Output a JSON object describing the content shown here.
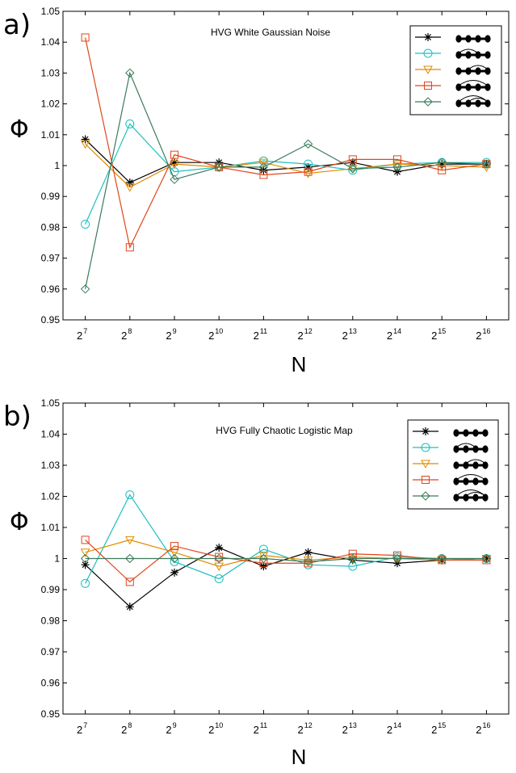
{
  "chart_data": [
    {
      "type": "line",
      "panel_label": "a)",
      "title": "HVG White Gaussian Noise",
      "xlabel": "N",
      "ylabel": "Φ",
      "ylim": [
        0.95,
        1.05
      ],
      "yticks": [
        "0.95",
        "0.96",
        "0.97",
        "0.98",
        "0.99",
        "1",
        "1.01",
        "1.02",
        "1.03",
        "1.04",
        "1.05"
      ],
      "categories": [
        {
          "base": "2",
          "exp": "7"
        },
        {
          "base": "2",
          "exp": "8"
        },
        {
          "base": "2",
          "exp": "9"
        },
        {
          "base": "2",
          "exp": "10"
        },
        {
          "base": "2",
          "exp": "11"
        },
        {
          "base": "2",
          "exp": "12"
        },
        {
          "base": "2",
          "exp": "13"
        },
        {
          "base": "2",
          "exp": "14"
        },
        {
          "base": "2",
          "exp": "15"
        },
        {
          "base": "2",
          "exp": "16"
        }
      ],
      "legend_position": "top-right",
      "series": [
        {
          "marker": "star",
          "color": "#000000",
          "motif": "chain",
          "values": [
            1.0085,
            0.9945,
            1.001,
            1.001,
            0.9985,
            0.9995,
            1.001,
            0.998,
            1.0005,
            1.0005
          ]
        },
        {
          "marker": "circle",
          "color": "#1fbfbf",
          "motif": "arc-1-3",
          "values": [
            0.981,
            1.0135,
            0.998,
            0.9995,
            1.0015,
            1.0005,
            0.9985,
            1.0005,
            1.001,
            1.001
          ]
        },
        {
          "marker": "triangle-down",
          "color": "#e08a00",
          "motif": "arc-2-4",
          "values": [
            1.007,
            0.993,
            1.0005,
            0.9995,
            1.001,
            0.9975,
            0.999,
            1.0005,
            1.0,
            0.9995
          ]
        },
        {
          "marker": "square",
          "color": "#e0451a",
          "motif": "arc-1-4",
          "values": [
            1.0415,
            0.9735,
            1.0035,
            0.9995,
            0.997,
            0.998,
            1.002,
            1.002,
            0.9985,
            1.0005
          ]
        },
        {
          "marker": "diamond",
          "color": "#3a7a5a",
          "motif": "arcs-nested",
          "values": [
            0.96,
            1.03,
            0.9955,
            0.9995,
            0.9995,
            1.007,
            0.999,
            0.9995,
            1.001,
            1.0005
          ]
        }
      ]
    },
    {
      "type": "line",
      "panel_label": "b)",
      "title": "HVG Fully Chaotic Logistic Map",
      "xlabel": "N",
      "ylabel": "Φ",
      "ylim": [
        0.95,
        1.05
      ],
      "yticks": [
        "0.95",
        "0.96",
        "0.97",
        "0.98",
        "0.99",
        "1",
        "1.01",
        "1.02",
        "1.03",
        "1.04",
        "1.05"
      ],
      "categories": [
        {
          "base": "2",
          "exp": "7"
        },
        {
          "base": "2",
          "exp": "8"
        },
        {
          "base": "2",
          "exp": "9"
        },
        {
          "base": "2",
          "exp": "10"
        },
        {
          "base": "2",
          "exp": "11"
        },
        {
          "base": "2",
          "exp": "12"
        },
        {
          "base": "2",
          "exp": "13"
        },
        {
          "base": "2",
          "exp": "14"
        },
        {
          "base": "2",
          "exp": "15"
        },
        {
          "base": "2",
          "exp": "16"
        }
      ],
      "legend_position": "top-right",
      "series": [
        {
          "marker": "star",
          "color": "#000000",
          "motif": "chain",
          "values": [
            0.998,
            0.9845,
            0.9955,
            1.0035,
            0.9975,
            1.002,
            0.9995,
            0.9985,
            0.9995,
            1.0
          ]
        },
        {
          "marker": "circle",
          "color": "#1fbfbf",
          "motif": "arc-1-3",
          "values": [
            0.992,
            1.0205,
            0.999,
            0.9935,
            1.003,
            0.998,
            0.9975,
            1.0005,
            1.0,
            1.0
          ]
        },
        {
          "marker": "triangle-down",
          "color": "#e08a00",
          "motif": "arc-2-4",
          "values": [
            1.002,
            1.006,
            1.002,
            0.9975,
            1.001,
            0.9995,
            1.0005,
            1.0,
            0.9995,
            1.0
          ]
        },
        {
          "marker": "square",
          "color": "#e0451a",
          "motif": "arc-1-4",
          "values": [
            1.006,
            0.9925,
            1.004,
            1.0005,
            0.9985,
            0.9985,
            1.0015,
            1.001,
            0.9995,
            0.9995
          ]
        },
        {
          "marker": "diamond",
          "color": "#3a7a5a",
          "motif": "arcs-nested",
          "values": [
            1.0,
            1.0,
            1.0,
            1.0,
            1.0,
            0.999,
            1.0,
            1.0,
            1.0,
            1.0
          ]
        }
      ]
    }
  ]
}
